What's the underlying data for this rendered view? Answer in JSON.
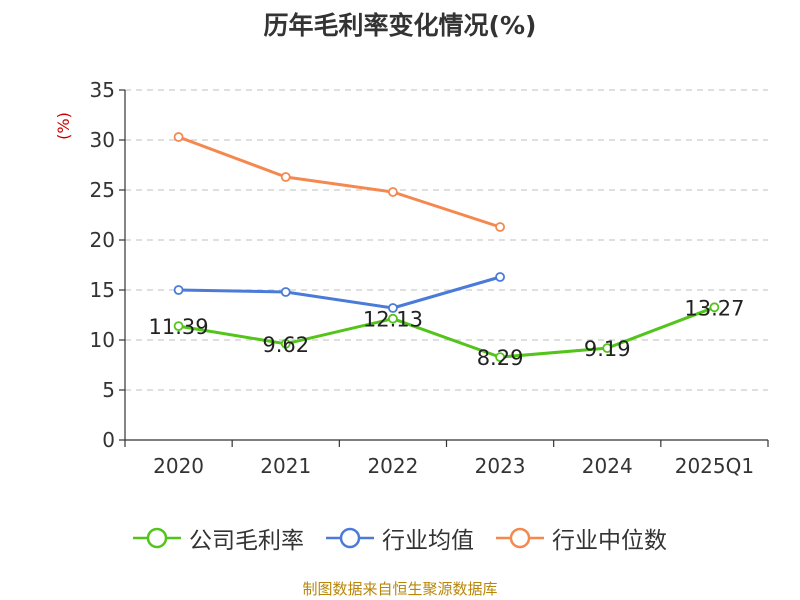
{
  "chart_data": {
    "type": "line",
    "title": "历年毛利率变化情况(%)",
    "ylabel": "(%)",
    "categories": [
      "2020",
      "2021",
      "2022",
      "2023",
      "2024",
      "2025Q1"
    ],
    "ylim": [
      0,
      35
    ],
    "yticks": [
      0,
      5,
      10,
      15,
      20,
      25,
      30,
      35
    ],
    "grid": true,
    "legend_position": "bottom",
    "series": [
      {
        "name": "公司毛利率",
        "color": "#52c41a",
        "values": [
          11.39,
          9.62,
          12.13,
          8.29,
          9.19,
          13.27
        ],
        "labels": [
          "11.39",
          "9.62",
          "12.13",
          "8.29",
          "9.19",
          "13.27"
        ]
      },
      {
        "name": "行业均值",
        "color": "#4a7bd9",
        "values": [
          15.0,
          14.8,
          13.2,
          16.3,
          null,
          null
        ]
      },
      {
        "name": "行业中位数",
        "color": "#f4884e",
        "values": [
          30.3,
          26.3,
          24.8,
          21.3,
          null,
          null
        ]
      }
    ]
  },
  "source": "制图数据来自恒生聚源数据库"
}
